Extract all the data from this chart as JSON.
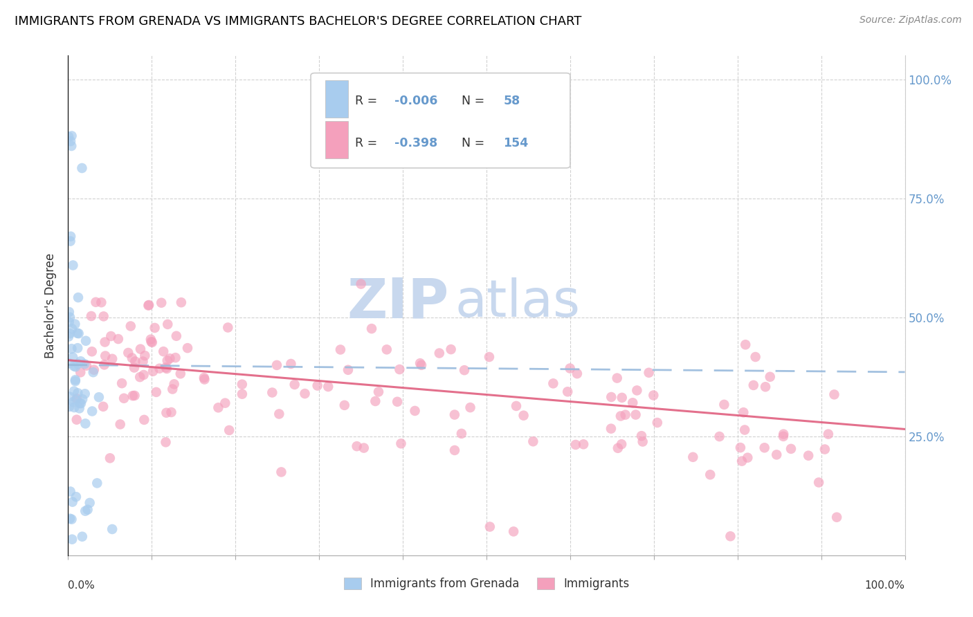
{
  "title": "IMMIGRANTS FROM GRENADA VS IMMIGRANTS BACHELOR'S DEGREE CORRELATION CHART",
  "source": "Source: ZipAtlas.com",
  "ylabel": "Bachelor's Degree",
  "color_blue": "#A8CCEE",
  "color_pink": "#F4A0BC",
  "color_blue_line": "#99BBDD",
  "color_pink_line": "#E06080",
  "watermark_zip": "ZIP",
  "watermark_atlas": "atlas",
  "watermark_color": "#C8D8EE",
  "background_color": "#FFFFFF",
  "grid_color": "#CCCCCC",
  "right_label_color": "#6699CC",
  "title_fontsize": 13,
  "axis_fontsize": 11
}
